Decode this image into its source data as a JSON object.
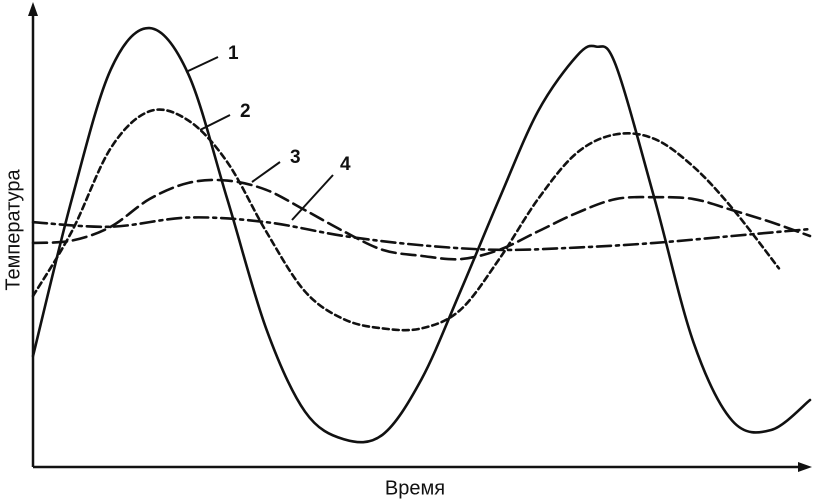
{
  "chart_data": {
    "type": "line",
    "x_label": "Время",
    "y_label": "Температура",
    "xlim": [
      0,
      100
    ],
    "ylim": [
      0,
      100
    ],
    "series": [
      {
        "name": "1",
        "color": "#111111",
        "dash": "solid",
        "x": [
          0,
          5,
          10,
          15,
          20,
          25,
          30,
          35,
          40,
          45,
          50,
          55,
          60,
          65,
          70,
          72.5,
          75,
          80,
          85,
          90,
          95,
          100
        ],
        "values": [
          24,
          58,
          86,
          95,
          85,
          58,
          30,
          12,
          6,
          7,
          19,
          38,
          58,
          77,
          89,
          91,
          87,
          58,
          27,
          10,
          8,
          14.5
        ]
      },
      {
        "name": "2",
        "color": "#111111",
        "dash": "short",
        "x": [
          0,
          5,
          10,
          15,
          20,
          25,
          30,
          35,
          40,
          45,
          50,
          55,
          60,
          65,
          70,
          75,
          80,
          85,
          90,
          96
        ],
        "values": [
          37,
          51,
          69,
          77,
          75,
          66,
          51,
          38,
          32,
          30,
          30,
          34,
          45,
          58,
          68,
          72,
          71,
          65,
          56,
          43
        ]
      },
      {
        "name": "3",
        "color": "#111111",
        "dash": "long",
        "x": [
          0,
          5,
          10,
          15,
          20,
          25,
          30,
          35,
          40,
          45,
          50,
          55,
          60,
          65,
          70,
          75,
          80,
          85,
          90,
          95,
          100
        ],
        "values": [
          48.5,
          49,
          52,
          58,
          61.5,
          62,
          60,
          55.6,
          51,
          47,
          45.7,
          45,
          47,
          51,
          55,
          58,
          58.4,
          58,
          55.6,
          53,
          50
        ]
      },
      {
        "name": "4",
        "color": "#111111",
        "dash": "dashdot",
        "x": [
          0,
          10,
          20,
          30,
          40,
          50,
          60,
          70,
          80,
          90,
          100
        ],
        "values": [
          53,
          52,
          54,
          53,
          50,
          48,
          47,
          47.5,
          48.5,
          50,
          51.5
        ]
      }
    ]
  }
}
